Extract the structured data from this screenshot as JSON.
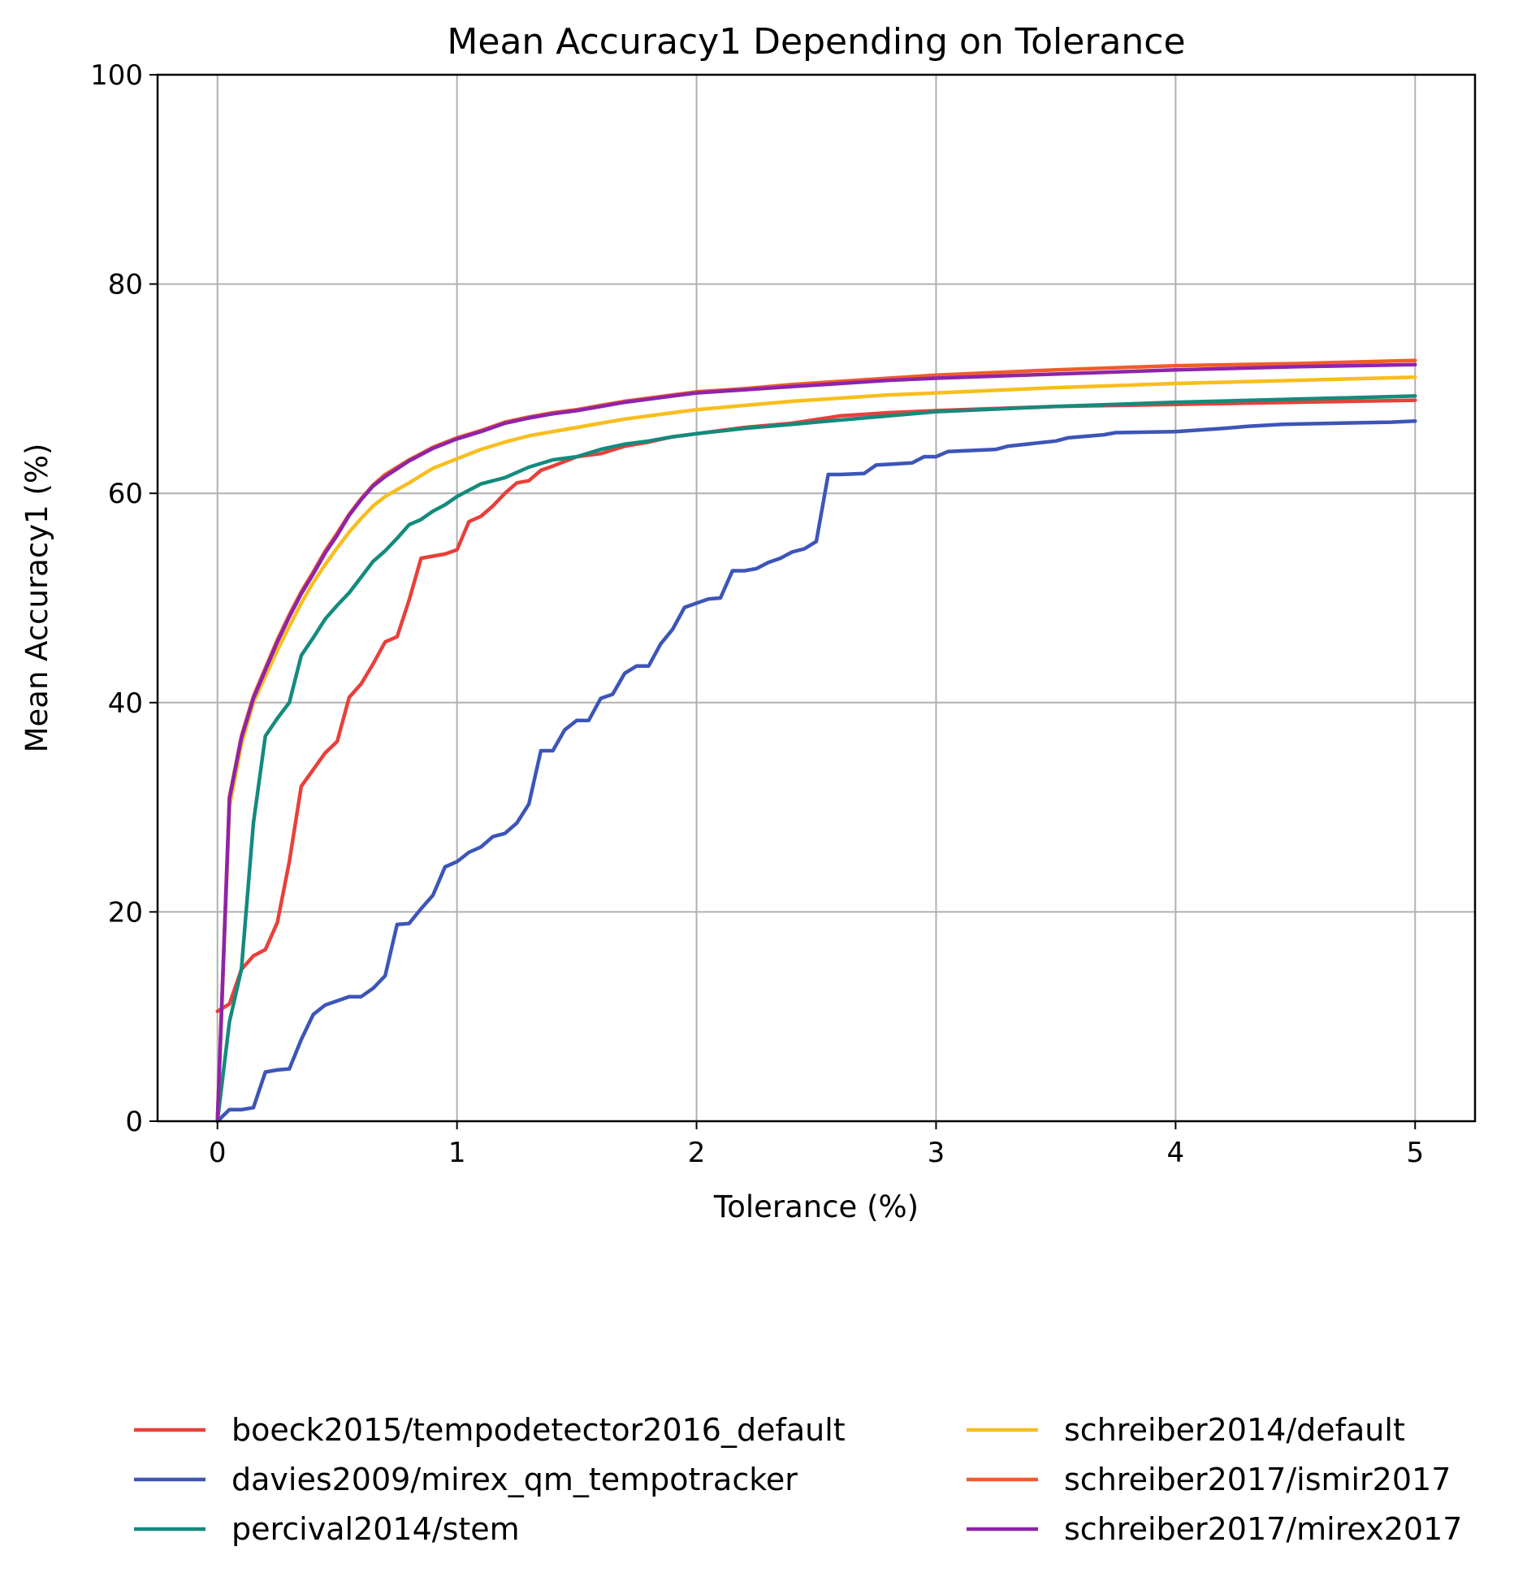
{
  "chart_data": {
    "type": "line",
    "title": "Mean Accuracy1 Depending on Tolerance",
    "xlabel": "Tolerance (%)",
    "ylabel": "Mean Accuracy1 (%)",
    "xlim": [
      -0.25,
      5.25
    ],
    "ylim": [
      0,
      100
    ],
    "xticks": [
      0,
      1,
      2,
      3,
      4,
      5
    ],
    "yticks": [
      0,
      20,
      40,
      60,
      80,
      100
    ],
    "xtick_labels": [
      "0",
      "1",
      "2",
      "3",
      "4",
      "5"
    ],
    "ytick_labels": [
      "0",
      "20",
      "40",
      "60",
      "80",
      "100"
    ],
    "grid": true,
    "legend": "bottom, two columns, below plot",
    "series": [
      {
        "name": "boeck2015/tempodetector2016_default",
        "color": "#e8403a",
        "x": [
          0,
          0.05,
          0.1,
          0.15,
          0.2,
          0.25,
          0.3,
          0.35,
          0.4,
          0.45,
          0.5,
          0.55,
          0.6,
          0.65,
          0.7,
          0.75,
          0.8,
          0.85,
          0.9,
          0.95,
          1.0,
          1.05,
          1.1,
          1.15,
          1.2,
          1.25,
          1.3,
          1.35,
          1.4,
          1.5,
          1.6,
          1.7,
          1.8,
          1.9,
          2.0,
          2.2,
          2.4,
          2.6,
          2.8,
          3.0,
          3.5,
          4.0,
          4.5,
          5.0
        ],
        "y": [
          10.5,
          11.2,
          14.5,
          15.8,
          16.4,
          19.0,
          24.8,
          32.0,
          33.6,
          35.2,
          36.3,
          40.5,
          41.8,
          43.7,
          45.8,
          46.3,
          49.8,
          53.8,
          54.0,
          54.2,
          54.6,
          57.3,
          57.8,
          58.8,
          60.0,
          61.0,
          61.2,
          62.2,
          62.6,
          63.5,
          63.8,
          64.5,
          64.9,
          65.4,
          65.7,
          66.3,
          66.7,
          67.4,
          67.7,
          67.9,
          68.3,
          68.5,
          68.7,
          68.9
        ]
      },
      {
        "name": "davies2009/mirex_qm_tempotracker",
        "color": "#3d55b8",
        "x": [
          0,
          0.05,
          0.1,
          0.15,
          0.2,
          0.25,
          0.3,
          0.35,
          0.4,
          0.45,
          0.5,
          0.55,
          0.6,
          0.65,
          0.7,
          0.75,
          0.8,
          0.85,
          0.9,
          0.95,
          1.0,
          1.05,
          1.1,
          1.15,
          1.2,
          1.25,
          1.3,
          1.35,
          1.4,
          1.45,
          1.5,
          1.55,
          1.6,
          1.65,
          1.7,
          1.75,
          1.8,
          1.85,
          1.9,
          1.95,
          2.0,
          2.05,
          2.1,
          2.15,
          2.2,
          2.25,
          2.3,
          2.35,
          2.4,
          2.45,
          2.5,
          2.55,
          2.6,
          2.7,
          2.75,
          2.9,
          2.95,
          3.0,
          3.05,
          3.25,
          3.3,
          3.5,
          3.55,
          3.7,
          3.75,
          4.0,
          4.2,
          4.3,
          4.45,
          4.9,
          5.0
        ],
        "y": [
          0,
          1.1,
          1.1,
          1.3,
          4.7,
          4.9,
          5.0,
          7.8,
          10.2,
          11.1,
          11.5,
          11.9,
          11.9,
          12.7,
          13.9,
          18.8,
          18.9,
          20.3,
          21.6,
          24.3,
          24.8,
          25.7,
          26.2,
          27.2,
          27.5,
          28.5,
          30.3,
          35.4,
          35.4,
          37.4,
          38.3,
          38.3,
          40.4,
          40.8,
          42.8,
          43.5,
          43.5,
          45.6,
          47.0,
          49.1,
          49.5,
          49.9,
          50.0,
          52.6,
          52.6,
          52.8,
          53.4,
          53.8,
          54.4,
          54.7,
          55.4,
          61.8,
          61.8,
          61.9,
          62.7,
          62.9,
          63.5,
          63.5,
          64.0,
          64.2,
          64.5,
          65.0,
          65.3,
          65.6,
          65.8,
          65.9,
          66.2,
          66.4,
          66.6,
          66.8,
          66.9
        ]
      },
      {
        "name": "percival2014/stem",
        "color": "#138b7d",
        "x": [
          0,
          0.05,
          0.1,
          0.15,
          0.2,
          0.25,
          0.3,
          0.35,
          0.4,
          0.45,
          0.5,
          0.55,
          0.6,
          0.65,
          0.7,
          0.75,
          0.8,
          0.85,
          0.9,
          0.95,
          1.0,
          1.1,
          1.2,
          1.3,
          1.4,
          1.5,
          1.6,
          1.7,
          1.8,
          1.9,
          2.0,
          2.2,
          2.4,
          2.6,
          2.8,
          3.0,
          3.5,
          4.0,
          4.5,
          5.0
        ],
        "y": [
          0,
          9.5,
          14.5,
          28.5,
          36.8,
          38.5,
          40.0,
          44.5,
          46.2,
          48.0,
          49.3,
          50.5,
          52.0,
          53.5,
          54.5,
          55.7,
          57.0,
          57.5,
          58.3,
          58.9,
          59.7,
          60.9,
          61.5,
          62.5,
          63.2,
          63.5,
          64.2,
          64.7,
          65.0,
          65.4,
          65.7,
          66.2,
          66.6,
          67.0,
          67.4,
          67.8,
          68.3,
          68.7,
          69.0,
          69.3
        ]
      },
      {
        "name": "schreiber2014/default",
        "color": "#f8be1e",
        "x": [
          0,
          0.05,
          0.1,
          0.15,
          0.2,
          0.25,
          0.3,
          0.35,
          0.4,
          0.45,
          0.5,
          0.55,
          0.6,
          0.65,
          0.7,
          0.8,
          0.9,
          1.0,
          1.1,
          1.2,
          1.3,
          1.4,
          1.5,
          1.6,
          1.7,
          1.8,
          1.9,
          2.0,
          2.2,
          2.4,
          2.6,
          2.8,
          3.0,
          3.5,
          4.0,
          4.5,
          5.0
        ],
        "y": [
          0,
          30.0,
          36.0,
          40.0,
          42.5,
          45.0,
          47.3,
          49.5,
          51.5,
          53.2,
          54.8,
          56.3,
          57.6,
          58.8,
          59.7,
          61.0,
          62.4,
          63.3,
          64.2,
          64.9,
          65.5,
          65.9,
          66.3,
          66.7,
          67.1,
          67.4,
          67.7,
          68.0,
          68.4,
          68.8,
          69.1,
          69.4,
          69.6,
          70.1,
          70.5,
          70.8,
          71.1
        ]
      },
      {
        "name": "schreiber2017/ismir2017",
        "color": "#f15b2a",
        "x": [
          0,
          0.05,
          0.1,
          0.15,
          0.2,
          0.25,
          0.3,
          0.35,
          0.4,
          0.45,
          0.5,
          0.55,
          0.6,
          0.65,
          0.7,
          0.8,
          0.9,
          1.0,
          1.1,
          1.2,
          1.3,
          1.4,
          1.5,
          1.6,
          1.7,
          1.8,
          1.9,
          2.0,
          2.2,
          2.4,
          2.6,
          2.8,
          3.0,
          3.5,
          4.0,
          4.5,
          5.0
        ],
        "y": [
          0,
          31.0,
          36.8,
          40.6,
          43.3,
          46.0,
          48.4,
          50.6,
          52.5,
          54.5,
          56.2,
          58.0,
          59.5,
          60.8,
          61.8,
          63.2,
          64.4,
          65.3,
          66.0,
          66.8,
          67.3,
          67.7,
          68.0,
          68.4,
          68.8,
          69.1,
          69.4,
          69.7,
          70.0,
          70.4,
          70.7,
          71.0,
          71.3,
          71.8,
          72.2,
          72.4,
          72.7
        ]
      },
      {
        "name": "schreiber2017/mirex2017",
        "color": "#8e24aa",
        "x": [
          0,
          0.05,
          0.1,
          0.15,
          0.2,
          0.25,
          0.3,
          0.35,
          0.4,
          0.45,
          0.5,
          0.55,
          0.6,
          0.65,
          0.7,
          0.8,
          0.9,
          1.0,
          1.1,
          1.2,
          1.3,
          1.4,
          1.5,
          1.6,
          1.7,
          1.8,
          1.9,
          2.0,
          2.2,
          2.4,
          2.6,
          2.8,
          3.0,
          3.5,
          4.0,
          4.5,
          5.0
        ],
        "y": [
          0,
          30.8,
          36.6,
          40.4,
          43.1,
          45.8,
          48.2,
          50.4,
          52.3,
          54.3,
          56.0,
          57.9,
          59.4,
          60.7,
          61.6,
          63.1,
          64.3,
          65.2,
          65.9,
          66.7,
          67.2,
          67.6,
          67.9,
          68.3,
          68.7,
          69.0,
          69.3,
          69.6,
          69.9,
          70.2,
          70.5,
          70.8,
          71.0,
          71.4,
          71.8,
          72.1,
          72.3
        ]
      }
    ]
  }
}
